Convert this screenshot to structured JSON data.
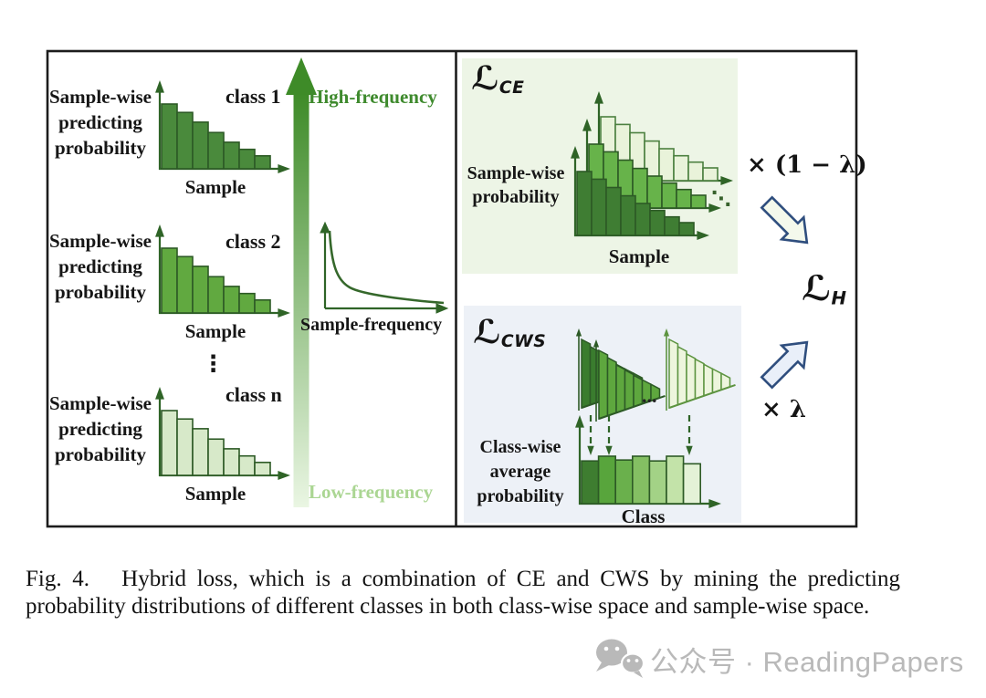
{
  "colors": {
    "class1_fill": "#4a8a3c",
    "class2_fill": "#61a940",
    "classn_fill": "#d7e9c9",
    "bar_stroke": "#2d5a26",
    "axis_green": "#2f6427",
    "gradient_top": "#3e8b28",
    "gradient_bottom": "#eaf6e3",
    "high_freq_label_color": "#3e8a2d",
    "low_freq_label_color": "#abd693",
    "ce_panel_bg": "#edf5e6",
    "cws_panel_bg": "#edf1f7",
    "ce_front_fill": "#3f7d33",
    "ce_mid_fill": "#67b34a",
    "ce_back_fill": "#e9f3da",
    "ce_back_stroke": "#4c8040",
    "cws_cascade1_fill": "#3a7c2e",
    "cws_cascade2_fill": "#5ea73e",
    "cws_cascade3_fill": "#edf5dd",
    "cws_cascade3_stroke": "#5d9440",
    "class_avg_colors": [
      "#3e7d30",
      "#58a53c",
      "#6ab04c",
      "#84bf63",
      "#a3d286",
      "#c3e3a9",
      "#e4f2d7"
    ],
    "block_arrow_ce_fill": "#f4f9ec",
    "block_arrow_cws_fill": "#e9eff9",
    "block_arrow_stroke": "#2f4e7e",
    "border_black": "#1c1c1c",
    "watermark_gray": "#b9b9b9"
  },
  "left_panel": {
    "y_axis_label": "Sample-wise\npredicting\nprobability",
    "x_axis_label": "Sample",
    "class_labels": [
      "class 1",
      "class 2",
      "class n"
    ],
    "vertical_ellipsis": "⋮",
    "high_frequency_label": "High-frequency",
    "low_frequency_label": "Low-frequency",
    "frequency_axis_label": "Sample-frequency"
  },
  "right_panel": {
    "ce_loss_symbol": "ℒ",
    "ce_loss_subscript": "CE",
    "ce_y_label": "Sample-wise\nprobability",
    "ce_x_label": "Sample",
    "ce_dots": "⋱",
    "ce_weight_label": "× (1 − λ)",
    "cws_loss_symbol": "ℒ",
    "cws_loss_subscript": "CWS",
    "cws_dots": "...",
    "cws_y_label": "Class-wise\naverage\nprobability",
    "cws_x_label": "Class",
    "cws_weight_label": "× λ",
    "hybrid_loss_symbol": "ℒ",
    "hybrid_loss_subscript": "H"
  },
  "caption": {
    "text": "Fig. 4.   Hybrid loss, which is a combination of CE and CWS by mining the predicting probability distributions of different classes in both class-wise space and sample-wise space."
  },
  "watermark": {
    "label": "公众号 · ReadingPapers"
  },
  "chart_data": [
    {
      "type": "bar",
      "title": "class 1",
      "xlabel": "Sample",
      "ylabel": "Sample-wise predicting probability",
      "values": [
        1.0,
        0.87,
        0.72,
        0.56,
        0.41,
        0.3,
        0.2
      ],
      "ylim": [
        0,
        1
      ],
      "note": "dark green descending distribution, high-frequency class"
    },
    {
      "type": "bar",
      "title": "class 2",
      "xlabel": "Sample",
      "ylabel": "Sample-wise predicting probability",
      "values": [
        1.0,
        0.87,
        0.72,
        0.56,
        0.41,
        0.3,
        0.2
      ],
      "ylim": [
        0,
        1
      ],
      "note": "medium green descending distribution"
    },
    {
      "type": "bar",
      "title": "class n",
      "xlabel": "Sample",
      "ylabel": "Sample-wise predicting probability",
      "values": [
        1.0,
        0.87,
        0.72,
        0.56,
        0.41,
        0.3,
        0.2
      ],
      "ylim": [
        0,
        1
      ],
      "note": "light green descending distribution, low-frequency class"
    },
    {
      "type": "line",
      "title": "Sample-frequency",
      "xlabel": "Sample-frequency",
      "ylabel": "",
      "note": "long-tail decay curve from high to low frequency"
    },
    {
      "type": "bar",
      "title": "L_CE sample-wise probability",
      "xlabel": "Sample",
      "ylabel": "Sample-wise probability",
      "series": [
        {
          "name": "class 1 (front, dark)",
          "values": [
            1.0,
            0.88,
            0.75,
            0.62,
            0.5,
            0.39,
            0.29,
            0.2
          ]
        },
        {
          "name": "class 2 (middle)",
          "values": [
            1.0,
            0.88,
            0.75,
            0.62,
            0.5,
            0.39,
            0.29,
            0.2
          ]
        },
        {
          "name": "class n (back, light)",
          "values": [
            1.0,
            0.88,
            0.75,
            0.62,
            0.5,
            0.39,
            0.29,
            0.2
          ]
        }
      ]
    },
    {
      "type": "bar",
      "title": "L_CWS per-class mini distributions",
      "xlabel": "",
      "ylabel": "",
      "values": [
        1.0,
        0.85,
        0.7,
        0.58,
        0.46,
        0.35,
        0.24
      ],
      "note": "sheared cascades: class 1 dark, class 2 medium, class n light"
    },
    {
      "type": "bar",
      "title": "L_CWS class-wise average probability",
      "xlabel": "Class",
      "ylabel": "Class-wise average probability",
      "values": [
        0.9,
        1.0,
        0.92,
        1.0,
        0.9,
        1.0,
        0.84
      ],
      "ylim": [
        0,
        1
      ]
    }
  ]
}
